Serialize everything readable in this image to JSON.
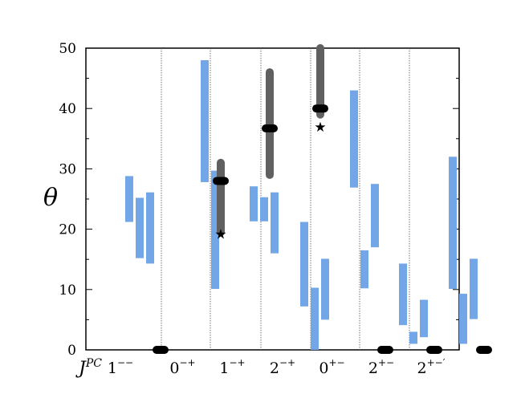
{
  "chart_data": {
    "type": "range-bar",
    "title": "",
    "xlabel": "J^PC",
    "ylabel": "θ",
    "ylim": [
      0,
      50
    ],
    "yticks": [
      0,
      10,
      20,
      30,
      40,
      50
    ],
    "grid": false,
    "colors": {
      "lattice": "#73a6e6",
      "model": "#606060",
      "marker": "#000000"
    },
    "categories": [
      {
        "label": "1",
        "exp": "−−"
      },
      {
        "label": "0",
        "exp": "−+"
      },
      {
        "label": "1",
        "exp": "−+"
      },
      {
        "label": "2",
        "exp": "−+"
      },
      {
        "label": "0",
        "exp": "+−"
      },
      {
        "label": "2",
        "exp": "+−"
      },
      {
        "label": "2",
        "exp": "+−′"
      }
    ],
    "lattice_ranges": [
      {
        "category": 0,
        "bars": [
          [
            21.2,
            28.8
          ],
          [
            15.2,
            25.2
          ],
          [
            14.3,
            26.1
          ]
        ]
      },
      {
        "category": 1,
        "bars": [
          [
            27.8,
            48.0
          ],
          [
            10.1,
            29.7
          ]
        ]
      },
      {
        "category": 2,
        "bars": [
          [
            21.3,
            27.1
          ],
          [
            21.3,
            25.3
          ],
          [
            16.0,
            26.1
          ]
        ]
      },
      {
        "category": 3,
        "bars": [
          [
            7.2,
            21.2
          ],
          [
            0.0,
            10.3
          ],
          [
            5.0,
            15.1
          ]
        ]
      },
      {
        "category": 4,
        "bars": [
          [
            26.9,
            43.0
          ],
          [
            10.2,
            16.5
          ],
          [
            17.0,
            27.5
          ]
        ]
      },
      {
        "category": 5,
        "bars": [
          [
            4.1,
            14.3
          ],
          [
            1.0,
            3.0
          ],
          [
            2.1,
            8.3
          ]
        ]
      },
      {
        "category": 6,
        "bars": [
          [
            10.1,
            32.0
          ],
          [
            1.0,
            9.3
          ],
          [
            5.1,
            15.1
          ]
        ]
      }
    ],
    "model_ranges": [
      {
        "category": 1,
        "low": 19.5,
        "high": 31.0,
        "value": 28.0,
        "star": 19.2
      },
      {
        "category": 2,
        "low": 29.0,
        "high": 46.0,
        "value": 36.7,
        "star": null
      },
      {
        "category": 3,
        "low": 39.0,
        "high": 50.0,
        "value": 40.0,
        "star": 37.0
      }
    ],
    "zero_markers": [
      0,
      4,
      5,
      6
    ]
  }
}
